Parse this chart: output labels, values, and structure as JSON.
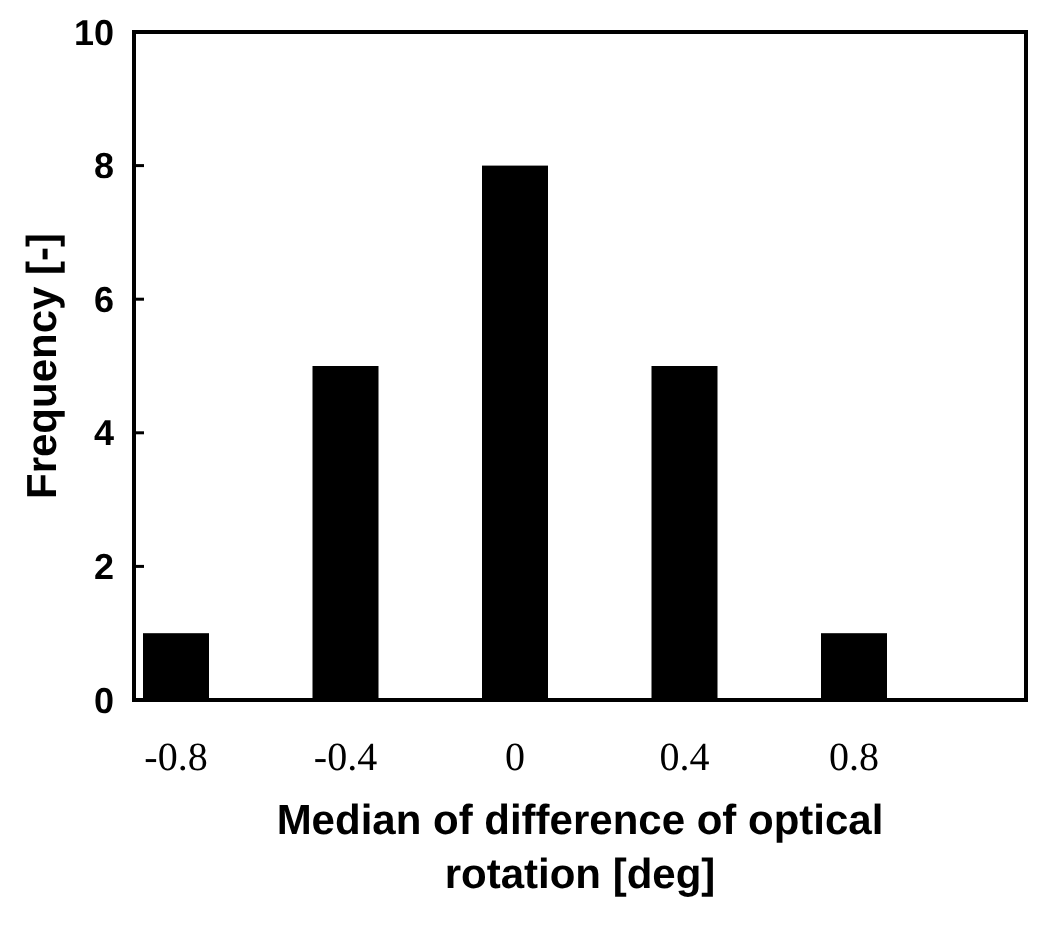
{
  "chart_data": {
    "type": "bar",
    "xlabel": "Median of difference of optical rotation [deg]",
    "ylabel": "Frequency [-]",
    "categories": [
      "-0.8",
      "-0.4",
      "0",
      "0.4",
      "0.8"
    ],
    "values": [
      1,
      5,
      8,
      5,
      1
    ],
    "color": "#000000",
    "ylim": [
      0,
      10
    ],
    "yticks": [
      0,
      2,
      4,
      6,
      8,
      10
    ],
    "grid": false
  }
}
